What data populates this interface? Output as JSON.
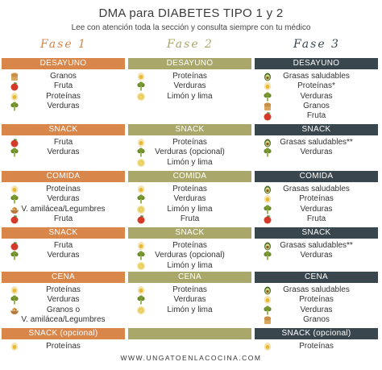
{
  "title": "DMA para DIABETES TIPO 1 y 2",
  "subtitle": "Lee con atención toda la sección y consulta siempre con tu médico",
  "colors": {
    "fase1": "#d9864a",
    "fase2": "#a9a86a",
    "fase3": "#39464e"
  },
  "phases": [
    {
      "label": "Fase 1",
      "sections": [
        {
          "name": "DESAYUNO",
          "items": [
            {
              "text": "Granos",
              "icon": "bread-icon"
            },
            {
              "text": "Fruta",
              "icon": "apple-icon"
            },
            {
              "text": "Proteínas",
              "icon": "protein-icon"
            },
            {
              "text": "Verduras",
              "icon": "broccoli-icon"
            }
          ]
        },
        {
          "name": "SNACK",
          "items": [
            {
              "text": "Fruta",
              "icon": "apple-icon"
            },
            {
              "text": "Verduras",
              "icon": "broccoli-icon"
            }
          ]
        },
        {
          "name": "COMIDA",
          "items": [
            {
              "text": "Proteínas",
              "icon": "protein-icon"
            },
            {
              "text": "Verduras",
              "icon": "broccoli-icon"
            },
            {
              "text": "V. amilácea/Legumbres",
              "icon": "bowl-icon"
            },
            {
              "text": "Fruta",
              "icon": "apple-icon"
            }
          ]
        },
        {
          "name": "SNACK",
          "items": [
            {
              "text": "Fruta",
              "icon": "apple-icon"
            },
            {
              "text": "Verduras",
              "icon": "broccoli-icon"
            }
          ]
        },
        {
          "name": "CENA",
          "items": [
            {
              "text": "Proteínas",
              "icon": "protein-icon"
            },
            {
              "text": "Verduras",
              "icon": "broccoli-icon"
            },
            {
              "text": "Granos o",
              "icon": "bowl-icon"
            },
            {
              "text": "V. amilácea/Legumbres",
              "icon": ""
            }
          ]
        },
        {
          "name": "SNACK (opcional)",
          "items": [
            {
              "text": "Proteínas",
              "icon": "protein-icon"
            }
          ]
        }
      ]
    },
    {
      "label": "Fase 2",
      "sections": [
        {
          "name": "DESAYUNO",
          "items": [
            {
              "text": "Proteínas",
              "icon": "protein-icon"
            },
            {
              "text": "Verduras",
              "icon": "broccoli-icon"
            },
            {
              "text": "Limón y lima",
              "icon": "lemon-icon"
            }
          ]
        },
        {
          "name": "SNACK",
          "items": [
            {
              "text": "Proteínas",
              "icon": "protein-icon"
            },
            {
              "text": "Verduras (opcional)",
              "icon": "broccoli-icon"
            },
            {
              "text": "Limón y lima",
              "icon": "lemon-icon"
            }
          ]
        },
        {
          "name": "COMIDA",
          "items": [
            {
              "text": "Proteínas",
              "icon": "protein-icon"
            },
            {
              "text": "Verduras",
              "icon": "broccoli-icon"
            },
            {
              "text": "Limón y lima",
              "icon": "lemon-icon"
            },
            {
              "text": "Fruta",
              "icon": "apple-icon"
            }
          ]
        },
        {
          "name": "SNACK",
          "items": [
            {
              "text": "Proteínas",
              "icon": "protein-icon"
            },
            {
              "text": "Verduras (opcional)",
              "icon": "broccoli-icon"
            },
            {
              "text": "Limón y lima",
              "icon": "lemon-icon"
            }
          ]
        },
        {
          "name": "CENA",
          "items": [
            {
              "text": "Proteínas",
              "icon": "protein-icon"
            },
            {
              "text": "Verduras",
              "icon": "broccoli-icon"
            },
            {
              "text": "Limón y lima",
              "icon": "lemon-icon"
            }
          ]
        },
        {
          "name": "",
          "items": []
        }
      ]
    },
    {
      "label": "Fase 3",
      "sections": [
        {
          "name": "DESAYUNO",
          "items": [
            {
              "text": "Grasas saludables",
              "icon": "avocado-icon"
            },
            {
              "text": "Proteínas*",
              "icon": "protein-icon"
            },
            {
              "text": "Verduras",
              "icon": "broccoli-icon"
            },
            {
              "text": "Granos",
              "icon": "bread-icon"
            },
            {
              "text": "Fruta",
              "icon": "apple-icon"
            }
          ]
        },
        {
          "name": "SNACK",
          "items": [
            {
              "text": "Grasas saludables**",
              "icon": "avocado-icon"
            },
            {
              "text": "Verduras",
              "icon": "broccoli-icon"
            }
          ]
        },
        {
          "name": "COMIDA",
          "items": [
            {
              "text": "Grasas saludables",
              "icon": "avocado-icon"
            },
            {
              "text": "Proteínas",
              "icon": "protein-icon"
            },
            {
              "text": "Verduras",
              "icon": "broccoli-icon"
            },
            {
              "text": "Fruta",
              "icon": "apple-icon"
            }
          ]
        },
        {
          "name": "SNACK",
          "items": [
            {
              "text": "Grasas saludables**",
              "icon": "avocado-icon"
            },
            {
              "text": "Verduras",
              "icon": "broccoli-icon"
            }
          ]
        },
        {
          "name": "CENA",
          "items": [
            {
              "text": "Grasas saludables",
              "icon": "avocado-icon"
            },
            {
              "text": "Proteínas",
              "icon": "protein-icon"
            },
            {
              "text": "Verduras",
              "icon": "broccoli-icon"
            },
            {
              "text": "Granos",
              "icon": "bread-icon"
            }
          ]
        },
        {
          "name": "SNACK (opcional)",
          "items": [
            {
              "text": "Proteínas",
              "icon": "protein-icon"
            }
          ]
        }
      ]
    }
  ],
  "footer": "WWW.UNGATOENLACOCINA.COM"
}
